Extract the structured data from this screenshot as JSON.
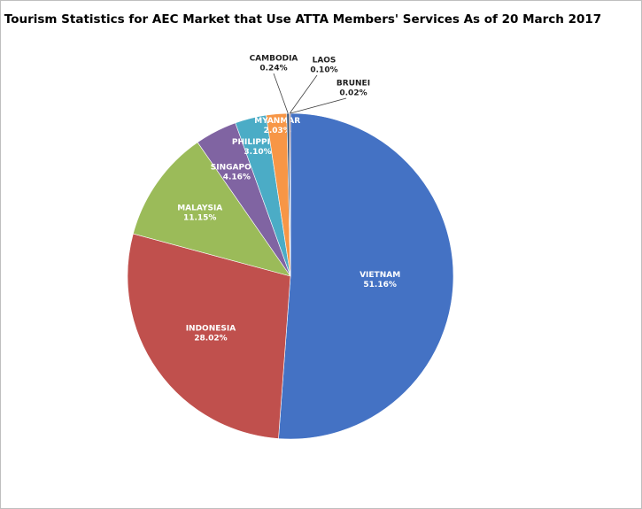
{
  "chart_data": {
    "type": "pie",
    "title": "Tourism Statistics for AEC Market that Use ATTA Members' Services As of 20 March 2017",
    "categories": [
      "VIETNAM",
      "INDONESIA",
      "MALAYSIA",
      "SINGAPORE",
      "PHILIPPINO",
      "MYANMAR",
      "CAMBODIA",
      "LAOS",
      "BRUNEI"
    ],
    "values": [
      51.16,
      28.02,
      11.15,
      4.16,
      3.1,
      2.03,
      0.24,
      0.1,
      0.02
    ],
    "value_labels": [
      "51.16%",
      "28.02%",
      "11.15%",
      "4.16%",
      "3.10%",
      "2.03%",
      "0.24%",
      "0.10%",
      "0.02%"
    ],
    "colors": [
      "#4472c4",
      "#c0504d",
      "#9bbb59",
      "#8064a2",
      "#4bacc6",
      "#f79646",
      "#2c4d75",
      "#772c2a",
      "#5f7530"
    ]
  }
}
